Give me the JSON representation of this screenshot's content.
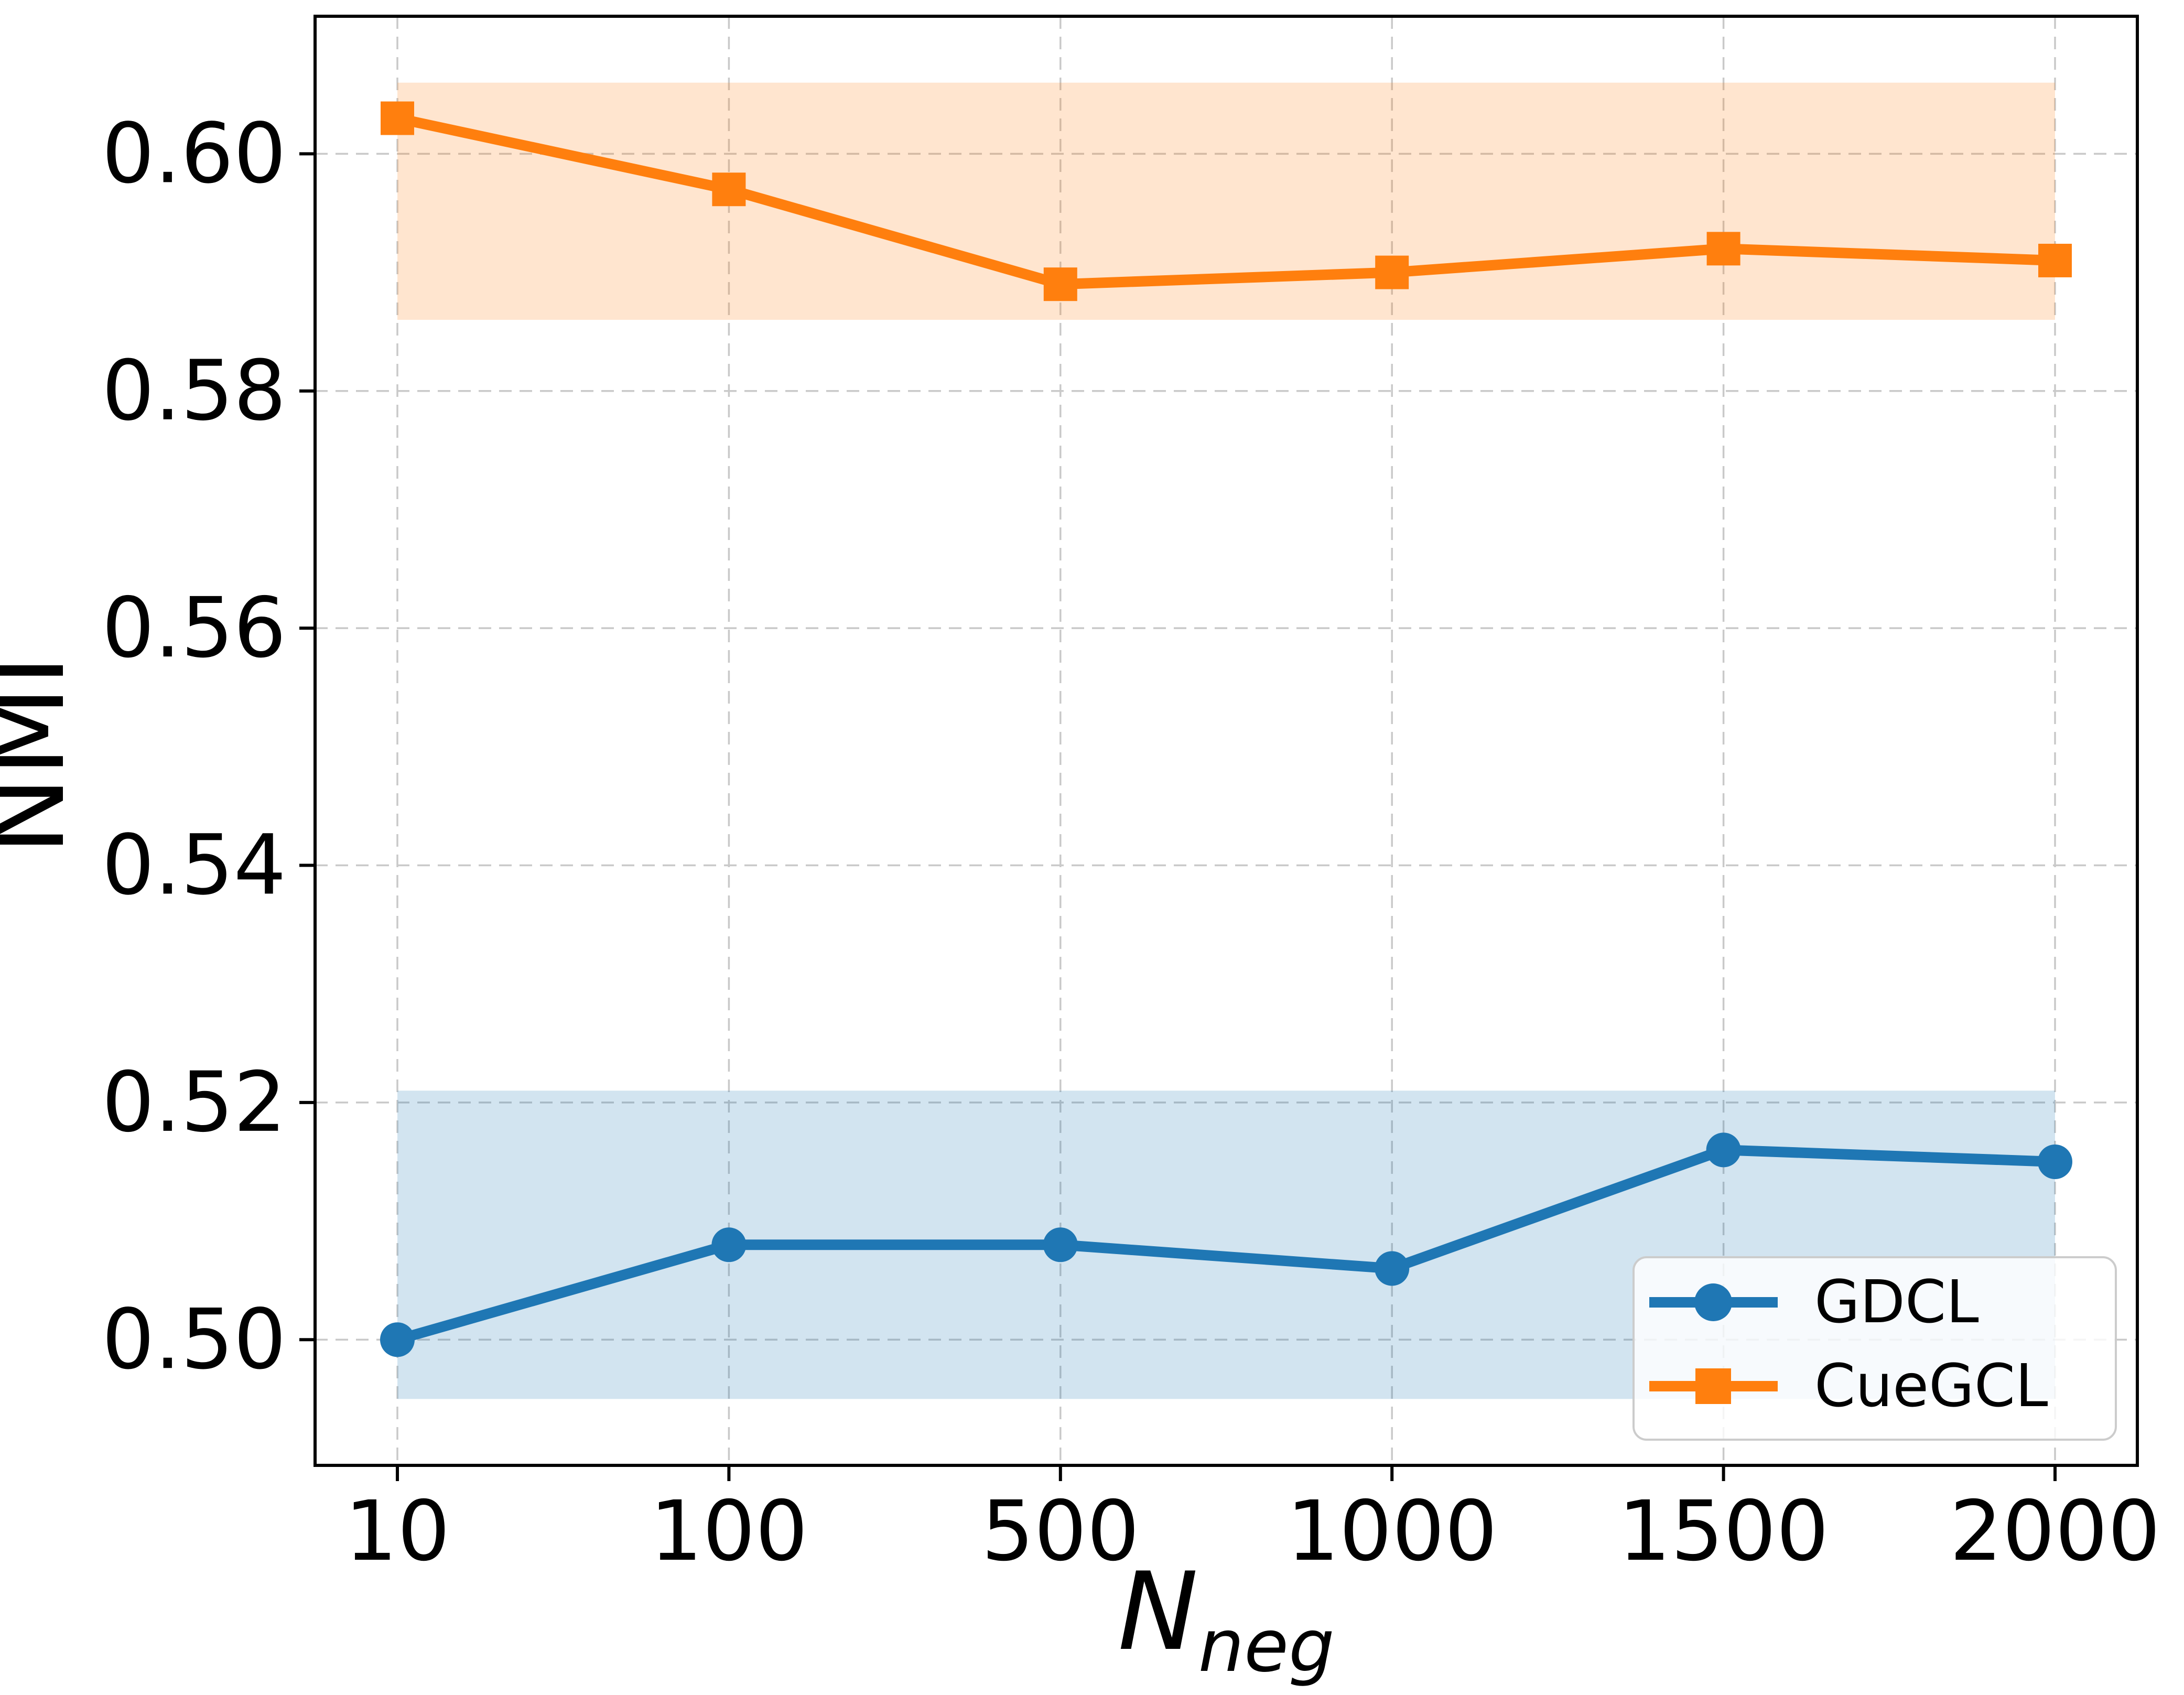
{
  "chart_data": {
    "type": "line",
    "title": "",
    "xlabel": "N_neg",
    "xlabel_main": "N",
    "xlabel_sub": "neg",
    "ylabel": "NMI",
    "x_scale": "categorical-even",
    "x_values": [
      10,
      100,
      500,
      1000,
      1500,
      2000
    ],
    "categories": [
      "10",
      "100",
      "500",
      "1000",
      "1500",
      "2000"
    ],
    "ytick_labels": [
      "0.50",
      "0.52",
      "0.54",
      "0.56",
      "0.58",
      "0.60"
    ],
    "ytick_values": [
      0.5,
      0.52,
      0.54,
      0.56,
      0.58,
      0.6
    ],
    "ylim": [
      0.4894,
      0.6116
    ],
    "grid": "dashed-both-axes",
    "legend_position": "lower-right",
    "series": [
      {
        "name": "GDCL",
        "color": "#1f77b4",
        "marker": "circle",
        "values": [
          0.5,
          0.508,
          0.508,
          0.506,
          0.516,
          0.515
        ],
        "band_low": 0.495,
        "band_high": 0.521,
        "band_fill": "rgba(31,119,180,0.20)"
      },
      {
        "name": "CueGCL",
        "color": "#ff7f0e",
        "marker": "square",
        "values": [
          0.603,
          0.597,
          0.589,
          0.59,
          0.592,
          0.591
        ],
        "band_low": 0.586,
        "band_high": 0.606,
        "band_fill": "rgba(255,127,14,0.20)"
      }
    ],
    "colors": {
      "grid": "#c9c9c9",
      "spine": "#000000",
      "text": "#000000",
      "legend_border": "#cccccc",
      "legend_bg": "rgba(255,255,255,0.82)"
    }
  }
}
